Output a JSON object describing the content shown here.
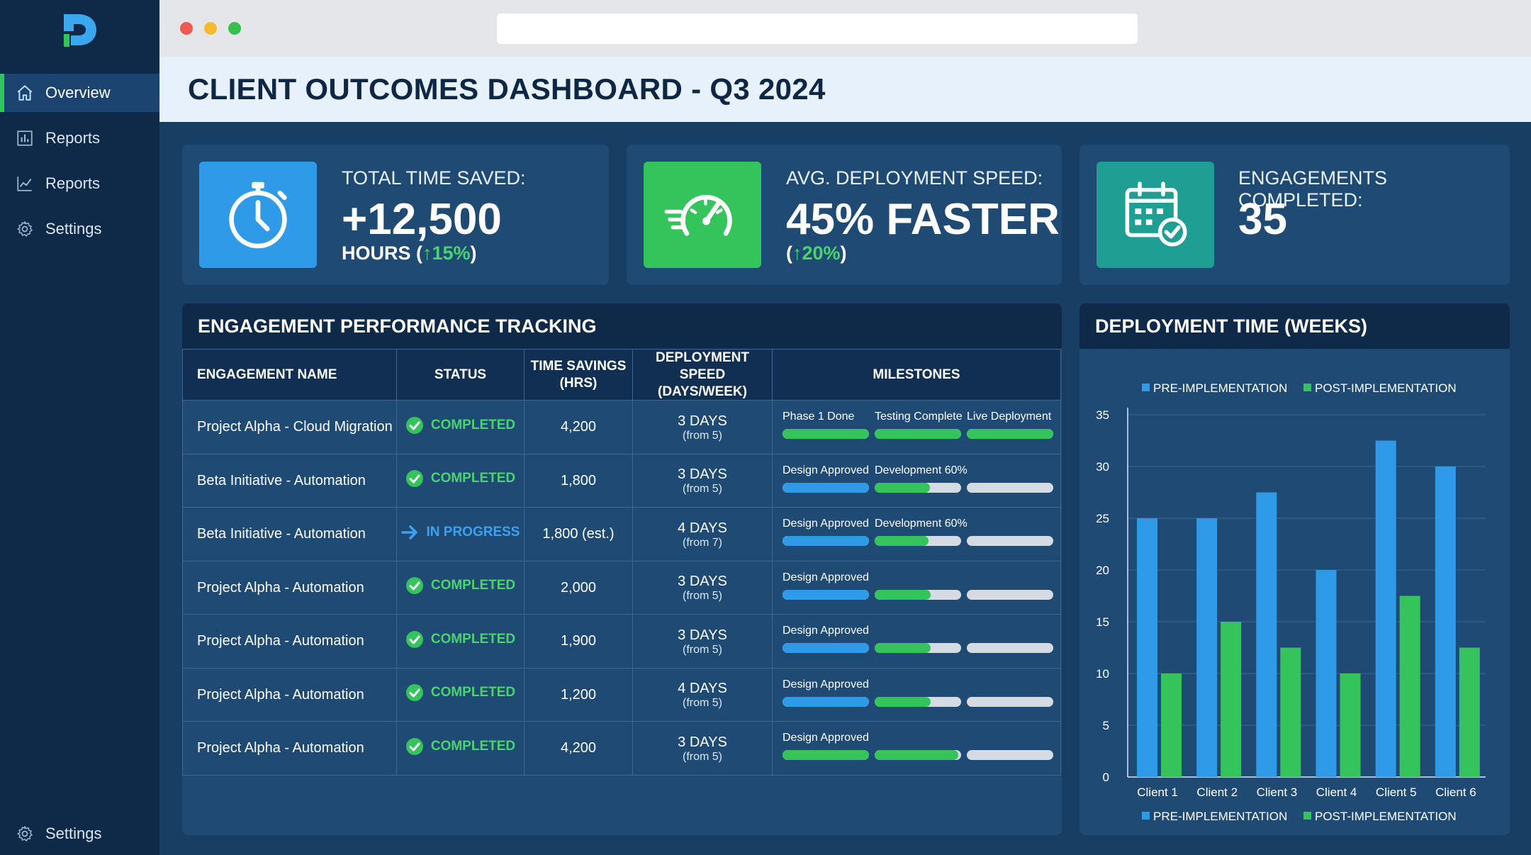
{
  "app": {
    "nav": [
      {
        "label": "Overview",
        "icon": "home-icon",
        "active": true
      },
      {
        "label": "Reports",
        "icon": "bar-chart-icon"
      },
      {
        "label": "Reports",
        "icon": "line-chart-icon"
      },
      {
        "label": "Settings",
        "icon": "gear-icon"
      }
    ],
    "bottom_nav": {
      "label": "Settings",
      "icon": "gear-icon"
    }
  },
  "header": {
    "title": "CLIENT OUTCOMES DASHBOARD - Q3 2024"
  },
  "kpis": [
    {
      "label": "TOTAL TIME SAVED:",
      "value": "+12,500",
      "sub_prefix": "HOURS (",
      "change": "↑15%",
      "sub_suffix": ")",
      "icon": "stopwatch-icon",
      "color": "#2f9be8"
    },
    {
      "label": "AVG. DEPLOYMENT SPEED:",
      "value": "45% FASTER",
      "sub_prefix": "(",
      "change": "↑20%",
      "sub_suffix": ")",
      "icon": "speedometer-icon",
      "color": "#35c35b"
    },
    {
      "label": "ENGAGEMENTS COMPLETED:",
      "value": "35",
      "icon": "calendar-check-icon",
      "color": "#1f9e93"
    }
  ],
  "table": {
    "title": "ENGAGEMENT PERFORMANCE TRACKING",
    "columns": {
      "name": "ENGAGEMENT NAME",
      "status": "STATUS",
      "savings_1": "TIME SAVINGS",
      "savings_2": "(HRS)",
      "speed_1": "DEPLOYMENT SPEED",
      "speed_2": "(DAYS/WEEK)",
      "milestones": "MILESTONES"
    },
    "rows": [
      {
        "name": "Project Alpha - Cloud Migration",
        "status": "COMPLETED",
        "status_type": "completed",
        "savings": "4,200",
        "speed": "3 DAYS",
        "speed_from": "(from 5)",
        "milestones": [
          {
            "label": "Phase 1 Done",
            "fill": 1.0,
            "color": "#35c35b"
          },
          {
            "label": "Testing Complete",
            "fill": 1.0,
            "color": "#35c35b"
          },
          {
            "label": "Live Deployment",
            "fill": 1.0,
            "color": "#35c35b"
          }
        ]
      },
      {
        "name": "Beta Initiative - Automation",
        "status": "COMPLETED",
        "status_type": "completed",
        "savings": "1,800",
        "speed": "3 DAYS",
        "speed_from": "(from 5)",
        "milestones": [
          {
            "label": "Design Approved",
            "fill": 1.0,
            "color": "#2f9be8"
          },
          {
            "label": "Development 60%",
            "fill": 0.64,
            "color": "#35c35b"
          },
          {
            "label": "",
            "fill": 0.0,
            "color": "#35c35b"
          }
        ]
      },
      {
        "name": "Beta Initiative - Automation",
        "status": "IN PROGRESS",
        "status_type": "progress",
        "savings": "1,800 (est.)",
        "speed": "4 DAYS",
        "speed_from": "(from 7)",
        "milestones": [
          {
            "label": "Design Approved",
            "fill": 1.0,
            "color": "#2f9be8"
          },
          {
            "label": "Development 60%",
            "fill": 0.62,
            "color": "#35c35b"
          },
          {
            "label": "",
            "fill": 0.0,
            "color": "#35c35b"
          }
        ]
      },
      {
        "name": "Project Alpha - Automation",
        "status": "COMPLETED",
        "status_type": "completed",
        "savings": "2,000",
        "speed": "3 DAYS",
        "speed_from": "(from 5)",
        "milestones": [
          {
            "label": "Design Approved",
            "fill": 1.0,
            "color": "#2f9be8"
          },
          {
            "label": "",
            "fill": 0.65,
            "color": "#35c35b"
          },
          {
            "label": "",
            "fill": 0.0,
            "color": "#35c35b"
          }
        ]
      },
      {
        "name": "Project Alpha - Automation",
        "status": "COMPLETED",
        "status_type": "completed",
        "savings": "1,900",
        "speed": "3 DAYS",
        "speed_from": "(from 5)",
        "milestones": [
          {
            "label": "Design Approved",
            "fill": 1.0,
            "color": "#2f9be8"
          },
          {
            "label": "",
            "fill": 0.65,
            "color": "#35c35b"
          },
          {
            "label": "",
            "fill": 0.0,
            "color": "#35c35b"
          }
        ]
      },
      {
        "name": "Project Alpha - Automation",
        "status": "COMPLETED",
        "status_type": "completed",
        "savings": "1,200",
        "speed": "4 DAYS",
        "speed_from": "(from 5)",
        "milestones": [
          {
            "label": "Design Approved",
            "fill": 1.0,
            "color": "#2f9be8"
          },
          {
            "label": "",
            "fill": 0.65,
            "color": "#35c35b"
          },
          {
            "label": "",
            "fill": 0.0,
            "color": "#35c35b"
          }
        ]
      },
      {
        "name": "Project Alpha - Automation",
        "status": "COMPLETED",
        "status_type": "completed",
        "savings": "4,200",
        "speed": "3 DAYS",
        "speed_from": "(from 5)",
        "milestones": [
          {
            "label": "Design Approved",
            "fill": 1.0,
            "color": "#35c35b"
          },
          {
            "label": "",
            "fill": 0.97,
            "color": "#35c35b"
          },
          {
            "label": "",
            "fill": 0.0,
            "color": "#35c35b"
          }
        ]
      }
    ]
  },
  "chart_data": {
    "type": "bar",
    "title": "DEPLOYMENT TIME (WEEKS)",
    "categories": [
      "Client 1",
      "Client 2",
      "Client 3",
      "Client 4",
      "Client 5",
      "Client 6"
    ],
    "series": [
      {
        "name": "PRE-IMPLEMENTATION",
        "color": "#2f9be8",
        "values": [
          25,
          25,
          27.5,
          20,
          32.5,
          30
        ]
      },
      {
        "name": "POST-IMPLEMENTATION",
        "color": "#35c35b",
        "values": [
          10,
          15,
          12.5,
          10,
          17.5,
          12.5
        ]
      }
    ],
    "ylim": [
      0,
      35
    ],
    "yticks": [
      0,
      5,
      10,
      15,
      20,
      25,
      30,
      35
    ],
    "grid": true,
    "legend": "top and bottom"
  }
}
